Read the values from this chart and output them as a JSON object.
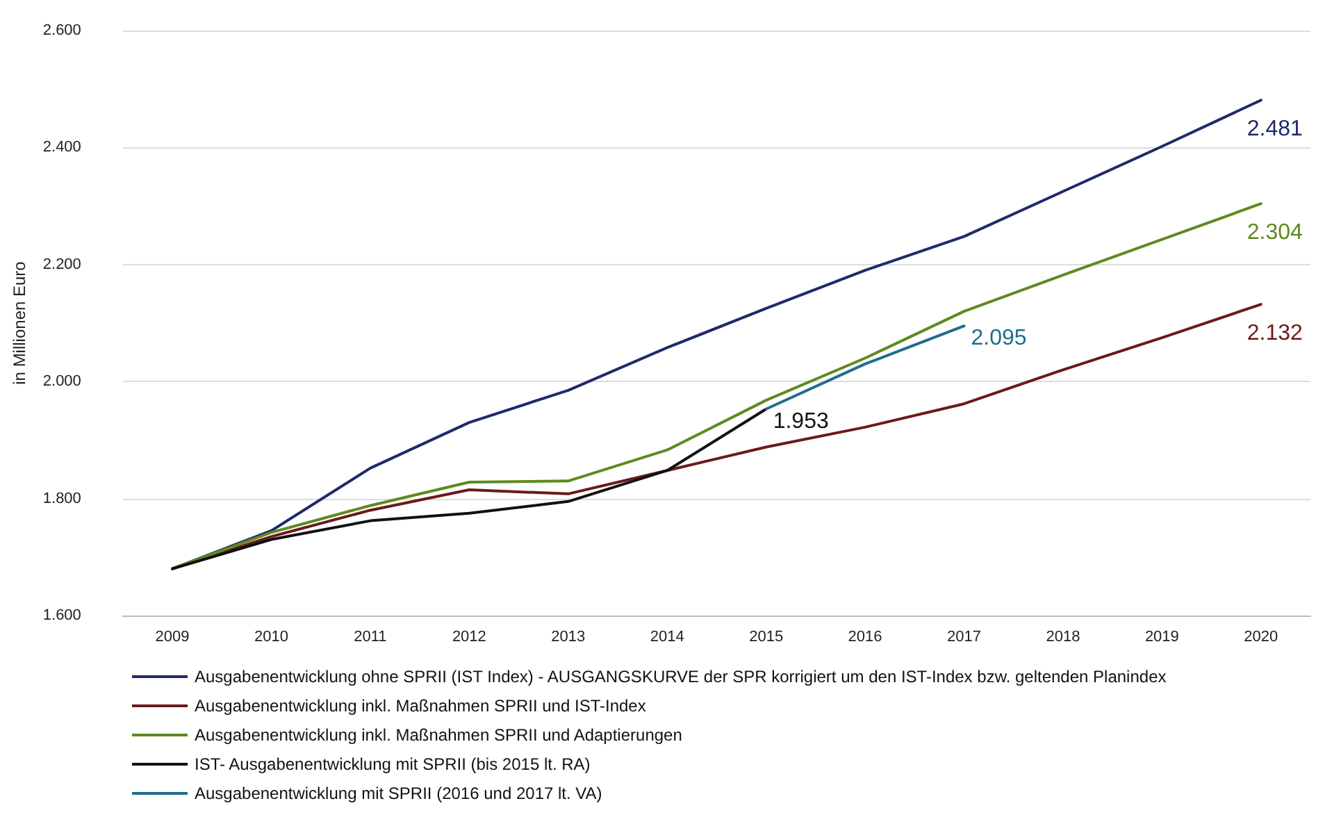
{
  "chart_data": {
    "type": "line",
    "ylabel": "in Millionen Euro",
    "categories": [
      "2009",
      "2010",
      "2011",
      "2012",
      "2013",
      "2014",
      "2015",
      "2016",
      "2017",
      "2018",
      "2019",
      "2020"
    ],
    "ylim": [
      1600,
      2600
    ],
    "yticks": [
      {
        "value": 1600,
        "label": "1.600"
      },
      {
        "value": 1800,
        "label": "1.800"
      },
      {
        "value": 2000,
        "label": "2.000"
      },
      {
        "value": 2200,
        "label": "2.200"
      },
      {
        "value": 2400,
        "label": "2.400"
      },
      {
        "value": 2600,
        "label": "2.600"
      }
    ],
    "grid": "y",
    "legend": "bottom",
    "marker": "none",
    "line_style": "solid",
    "series": [
      {
        "name": "Ausgabenentwicklung ohne SPRII (IST Index) - AUSGANGSKURVE der SPR korrigiert um den IST-Index bzw. geltenden Planindex",
        "color": "#1f2a6b",
        "values": [
          1680,
          1745,
          1852,
          1930,
          1985,
          2058,
          2125,
          2190,
          2248,
          2325,
          2402,
          2481
        ],
        "value_labels": [
          null,
          null,
          null,
          null,
          null,
          null,
          null,
          null,
          null,
          null,
          null,
          "2.481"
        ]
      },
      {
        "name": "Ausgabenentwicklung inkl. Maßnahmen SPRII und IST-Index",
        "color": "#6b1a1a",
        "values": [
          1680,
          1735,
          1780,
          1815,
          1808,
          1848,
          1888,
          1922,
          1962,
          2020,
          2075,
          2132
        ],
        "value_labels": [
          null,
          null,
          null,
          null,
          null,
          null,
          null,
          null,
          null,
          null,
          null,
          "2.132"
        ]
      },
      {
        "name": "Ausgabenentwicklung inkl. Maßnahmen SPRII und Adaptierungen",
        "color": "#5e8a1e",
        "values": [
          1680,
          1742,
          1788,
          1828,
          1830,
          1883,
          1968,
          2040,
          2120,
          2182,
          2243,
          2304
        ],
        "value_labels": [
          null,
          null,
          null,
          null,
          null,
          null,
          null,
          null,
          null,
          null,
          null,
          "2.304"
        ]
      },
      {
        "name": "IST- Ausgabenentwicklung mit SPRII (bis 2015 lt. RA)",
        "color": "#111111",
        "values": [
          1680,
          1730,
          1762,
          1775,
          1795,
          1848,
          1953,
          null,
          null,
          null,
          null,
          null
        ],
        "value_labels": [
          null,
          null,
          null,
          null,
          null,
          null,
          "1.953",
          null,
          null,
          null,
          null,
          null
        ]
      },
      {
        "name": "Ausgabenentwicklung mit SPRII (2016 und 2017 lt. VA)",
        "color": "#1f6e8a",
        "values": [
          null,
          null,
          null,
          null,
          null,
          null,
          1953,
          2030,
          2095,
          null,
          null,
          null
        ],
        "value_labels": [
          null,
          null,
          null,
          null,
          null,
          null,
          null,
          null,
          "2.095",
          null,
          null,
          null
        ]
      }
    ]
  }
}
